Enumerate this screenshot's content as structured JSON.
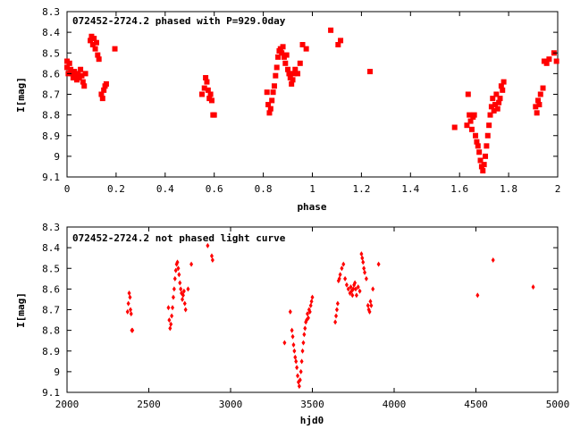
{
  "chart_data": [
    {
      "type": "scatter",
      "title": "072452-2724.2 phased with P=929.0day",
      "xlabel": "phase",
      "ylabel": "I[mag]",
      "xlim": [
        0,
        2
      ],
      "ylim": [
        8.3,
        9.1
      ],
      "y_inverted": true,
      "xticks": [
        0,
        0.2,
        0.4,
        0.6,
        0.8,
        1,
        1.2,
        1.4,
        1.6,
        1.8,
        2
      ],
      "yticks": [
        8.3,
        8.4,
        8.5,
        8.6,
        8.7,
        8.8,
        8.9,
        9,
        9.1
      ],
      "grid": false,
      "marker_color": "#ff0000",
      "marker": "filled-square",
      "series": [
        {
          "points": [
            [
              0.0,
              8.54
            ],
            [
              0.0,
              8.57
            ],
            [
              0.005,
              8.6
            ],
            [
              0.01,
              8.55
            ],
            [
              0.015,
              8.58
            ],
            [
              0.02,
              8.6
            ],
            [
              0.025,
              8.62
            ],
            [
              0.03,
              8.59
            ],
            [
              0.035,
              8.61
            ],
            [
              0.04,
              8.63
            ],
            [
              0.045,
              8.6
            ],
            [
              0.05,
              8.62
            ],
            [
              0.055,
              8.58
            ],
            [
              0.06,
              8.61
            ],
            [
              0.065,
              8.64
            ],
            [
              0.07,
              8.66
            ],
            [
              0.075,
              8.6
            ],
            [
              0.095,
              8.44
            ],
            [
              0.1,
              8.42
            ],
            [
              0.105,
              8.46
            ],
            [
              0.11,
              8.43
            ],
            [
              0.115,
              8.48
            ],
            [
              0.12,
              8.45
            ],
            [
              0.125,
              8.51
            ],
            [
              0.13,
              8.53
            ],
            [
              0.14,
              8.7
            ],
            [
              0.145,
              8.72
            ],
            [
              0.15,
              8.68
            ],
            [
              0.155,
              8.66
            ],
            [
              0.16,
              8.65
            ],
            [
              0.195,
              8.48
            ],
            [
              0.55,
              8.7
            ],
            [
              0.56,
              8.67
            ],
            [
              0.565,
              8.62
            ],
            [
              0.57,
              8.64
            ],
            [
              0.575,
              8.68
            ],
            [
              0.58,
              8.72
            ],
            [
              0.585,
              8.7
            ],
            [
              0.59,
              8.73
            ],
            [
              0.595,
              8.8
            ],
            [
              0.6,
              8.8
            ],
            [
              0.815,
              8.69
            ],
            [
              0.82,
              8.75
            ],
            [
              0.825,
              8.79
            ],
            [
              0.83,
              8.77
            ],
            [
              0.835,
              8.73
            ],
            [
              0.84,
              8.69
            ],
            [
              0.845,
              8.66
            ],
            [
              0.85,
              8.61
            ],
            [
              0.855,
              8.57
            ],
            [
              0.86,
              8.52
            ],
            [
              0.865,
              8.49
            ],
            [
              0.87,
              8.48
            ],
            [
              0.875,
              8.5
            ],
            [
              0.88,
              8.47
            ],
            [
              0.885,
              8.52
            ],
            [
              0.89,
              8.55
            ],
            [
              0.895,
              8.51
            ],
            [
              0.9,
              8.58
            ],
            [
              0.905,
              8.6
            ],
            [
              0.91,
              8.62
            ],
            [
              0.915,
              8.65
            ],
            [
              0.92,
              8.63
            ],
            [
              0.925,
              8.6
            ],
            [
              0.93,
              8.58
            ],
            [
              0.94,
              8.6
            ],
            [
              0.95,
              8.55
            ],
            [
              0.96,
              8.46
            ],
            [
              0.975,
              8.48
            ],
            [
              1.075,
              8.39
            ],
            [
              1.105,
              8.46
            ],
            [
              1.115,
              8.44
            ],
            [
              1.235,
              8.59
            ],
            [
              1.58,
              8.86
            ],
            [
              1.63,
              8.85
            ],
            [
              1.635,
              8.7
            ],
            [
              1.64,
              8.8
            ],
            [
              1.645,
              8.83
            ],
            [
              1.65,
              8.87
            ],
            [
              1.655,
              8.81
            ],
            [
              1.66,
              8.8
            ],
            [
              1.665,
              8.9
            ],
            [
              1.67,
              8.93
            ],
            [
              1.675,
              8.95
            ],
            [
              1.68,
              8.98
            ],
            [
              1.685,
              9.02
            ],
            [
              1.69,
              9.05
            ],
            [
              1.695,
              9.07
            ],
            [
              1.7,
              9.04
            ],
            [
              1.705,
              9.0
            ],
            [
              1.71,
              8.95
            ],
            [
              1.715,
              8.9
            ],
            [
              1.72,
              8.85
            ],
            [
              1.725,
              8.8
            ],
            [
              1.73,
              8.76
            ],
            [
              1.735,
              8.72
            ],
            [
              1.74,
              8.78
            ],
            [
              1.745,
              8.75
            ],
            [
              1.75,
              8.7
            ],
            [
              1.755,
              8.77
            ],
            [
              1.76,
              8.74
            ],
            [
              1.765,
              8.72
            ],
            [
              1.77,
              8.66
            ],
            [
              1.775,
              8.68
            ],
            [
              1.78,
              8.64
            ],
            [
              1.91,
              8.76
            ],
            [
              1.915,
              8.79
            ],
            [
              1.92,
              8.73
            ],
            [
              1.925,
              8.75
            ],
            [
              1.93,
              8.7
            ],
            [
              1.94,
              8.67
            ],
            [
              1.945,
              8.54
            ],
            [
              1.955,
              8.55
            ],
            [
              1.965,
              8.53
            ],
            [
              1.985,
              8.5
            ],
            [
              1.995,
              8.54
            ]
          ]
        }
      ]
    },
    {
      "type": "scatter",
      "title": "072452-2724.2 not phased light curve",
      "xlabel": "hjd0",
      "ylabel": "I[mag]",
      "xlim": [
        2000,
        5000
      ],
      "ylim": [
        8.3,
        9.1
      ],
      "y_inverted": true,
      "xticks": [
        2000,
        2500,
        3000,
        3500,
        4000,
        4500,
        5000
      ],
      "yticks": [
        8.3,
        8.4,
        8.5,
        8.6,
        8.7,
        8.8,
        8.9,
        9,
        9.1
      ],
      "grid": false,
      "marker_color": "#ff0000",
      "marker": "filled-diamond",
      "series": [
        {
          "points": [
            [
              2370,
              8.71
            ],
            [
              2375,
              8.67
            ],
            [
              2380,
              8.62
            ],
            [
              2385,
              8.64
            ],
            [
              2388,
              8.7
            ],
            [
              2392,
              8.72
            ],
            [
              2396,
              8.8
            ],
            [
              2400,
              8.8
            ],
            [
              2620,
              8.69
            ],
            [
              2625,
              8.75
            ],
            [
              2630,
              8.79
            ],
            [
              2635,
              8.77
            ],
            [
              2640,
              8.73
            ],
            [
              2645,
              8.69
            ],
            [
              2650,
              8.64
            ],
            [
              2655,
              8.6
            ],
            [
              2660,
              8.55
            ],
            [
              2665,
              8.51
            ],
            [
              2670,
              8.48
            ],
            [
              2675,
              8.47
            ],
            [
              2680,
              8.5
            ],
            [
              2685,
              8.53
            ],
            [
              2690,
              8.57
            ],
            [
              2695,
              8.6
            ],
            [
              2700,
              8.62
            ],
            [
              2705,
              8.65
            ],
            [
              2710,
              8.63
            ],
            [
              2715,
              8.61
            ],
            [
              2720,
              8.67
            ],
            [
              2725,
              8.7
            ],
            [
              2740,
              8.6
            ],
            [
              2760,
              8.48
            ],
            [
              2860,
              8.39
            ],
            [
              2885,
              8.44
            ],
            [
              2890,
              8.46
            ],
            [
              3330,
              8.86
            ],
            [
              3365,
              8.71
            ],
            [
              3375,
              8.8
            ],
            [
              3380,
              8.83
            ],
            [
              3385,
              8.87
            ],
            [
              3390,
              8.9
            ],
            [
              3395,
              8.93
            ],
            [
              3400,
              8.95
            ],
            [
              3405,
              8.98
            ],
            [
              3410,
              9.02
            ],
            [
              3415,
              9.05
            ],
            [
              3420,
              9.07
            ],
            [
              3425,
              9.04
            ],
            [
              3430,
              9.0
            ],
            [
              3435,
              8.95
            ],
            [
              3440,
              8.9
            ],
            [
              3445,
              8.86
            ],
            [
              3450,
              8.82
            ],
            [
              3455,
              8.79
            ],
            [
              3460,
              8.76
            ],
            [
              3465,
              8.75
            ],
            [
              3470,
              8.72
            ],
            [
              3475,
              8.74
            ],
            [
              3480,
              8.7
            ],
            [
              3485,
              8.71
            ],
            [
              3490,
              8.68
            ],
            [
              3495,
              8.66
            ],
            [
              3500,
              8.64
            ],
            [
              3640,
              8.76
            ],
            [
              3645,
              8.73
            ],
            [
              3650,
              8.7
            ],
            [
              3655,
              8.67
            ],
            [
              3660,
              8.56
            ],
            [
              3665,
              8.55
            ],
            [
              3670,
              8.53
            ],
            [
              3680,
              8.5
            ],
            [
              3690,
              8.48
            ],
            [
              3700,
              8.55
            ],
            [
              3710,
              8.58
            ],
            [
              3720,
              8.6
            ],
            [
              3730,
              8.62
            ],
            [
              3735,
              8.59
            ],
            [
              3740,
              8.61
            ],
            [
              3745,
              8.63
            ],
            [
              3750,
              8.6
            ],
            [
              3755,
              8.58
            ],
            [
              3760,
              8.57
            ],
            [
              3765,
              8.6
            ],
            [
              3770,
              8.63
            ],
            [
              3780,
              8.59
            ],
            [
              3790,
              8.61
            ],
            [
              3800,
              8.43
            ],
            [
              3805,
              8.45
            ],
            [
              3810,
              8.47
            ],
            [
              3815,
              8.5
            ],
            [
              3820,
              8.52
            ],
            [
              3830,
              8.55
            ],
            [
              3840,
              8.68
            ],
            [
              3845,
              8.7
            ],
            [
              3850,
              8.71
            ],
            [
              3855,
              8.66
            ],
            [
              3860,
              8.68
            ],
            [
              3870,
              8.6
            ],
            [
              3905,
              8.48
            ],
            [
              4510,
              8.63
            ],
            [
              4605,
              8.46
            ],
            [
              4850,
              8.59
            ]
          ]
        }
      ]
    }
  ]
}
